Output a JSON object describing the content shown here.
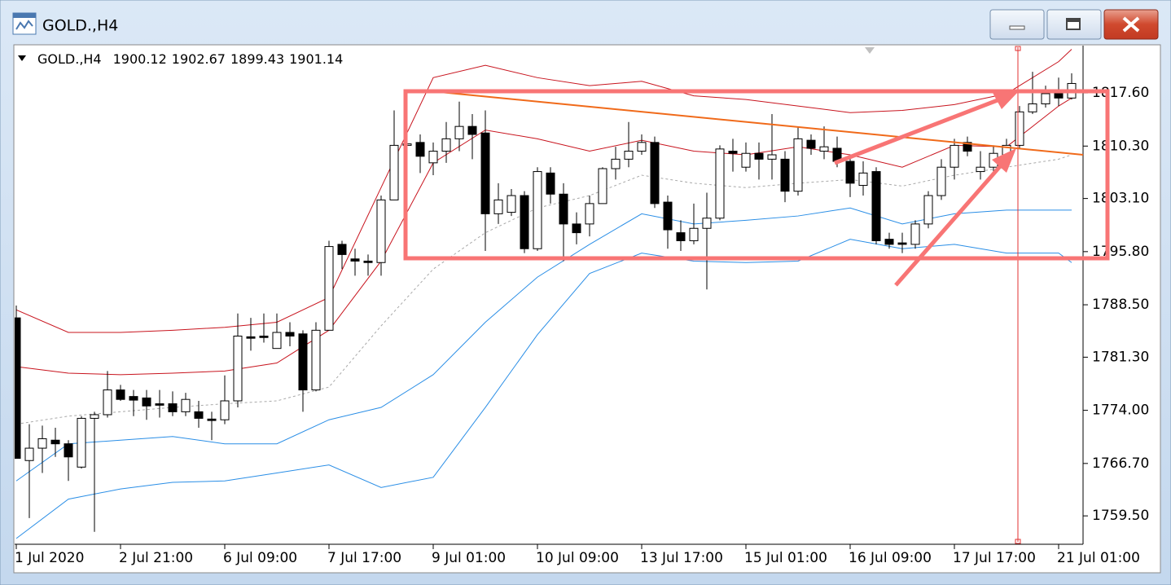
{
  "window": {
    "title": "GOLD.,H4"
  },
  "chart_data": {
    "type": "candlestick",
    "symbol": "GOLD.,H4",
    "header_values": [
      1900.12,
      1902.67,
      1899.43,
      1901.14
    ],
    "categories": [
      "1 Jul 2020",
      null,
      null,
      null,
      null,
      null,
      null,
      null,
      "2 Jul 21:00",
      null,
      null,
      null,
      null,
      null,
      null,
      null,
      "6 Jul 09:00",
      null,
      null,
      null,
      null,
      null,
      null,
      null,
      "7 Jul 17:00",
      null,
      null,
      null,
      null,
      null,
      null,
      null,
      "9 Jul 01:00",
      null,
      null,
      null,
      null,
      null,
      null,
      null,
      "10 Jul 09:00",
      null,
      null,
      null,
      null,
      null,
      null,
      null,
      "13 Jul 17:00",
      null,
      null,
      null,
      null,
      null,
      null,
      null,
      "15 Jul 01:00",
      null,
      null,
      null,
      null,
      null,
      null,
      null,
      "16 Jul 09:00",
      null,
      null,
      null,
      null,
      null,
      null,
      null,
      "17 Jul 17:00",
      null,
      null,
      null,
      null,
      null,
      null,
      null,
      "21 Jul 01:00",
      null
    ],
    "open": [
      1786.7,
      1767.1,
      1768.8,
      1769.9,
      1769.4,
      1766.2,
      1772.9,
      1773.4,
      1776.8,
      1775.9,
      1775.7,
      1774.9,
      1774.9,
      1773.8,
      1773.8,
      1772.8,
      1772.7,
      1775.3,
      1784.1,
      1784.2,
      1782.5,
      1784.7,
      1784.5,
      1776.8,
      1785.0,
      1796.8,
      1794.8,
      1794.5,
      1794.3,
      1802.9,
      1810.4,
      1810.8,
      1808.0,
      1809.6,
      1811.3,
      1813.0,
      1812.1,
      1801.0,
      1801.2,
      1803.5,
      1796.2,
      1806.6,
      1803.7,
      1799.6,
      1799.6,
      1802.4,
      1807.2,
      1808.5,
      1809.6,
      1810.8,
      1802.6,
      1798.4,
      1797.3,
      1799.0,
      1800.4,
      1809.6,
      1807.4,
      1809.3,
      1808.5,
      1808.5,
      1804.1,
      1811.1,
      1809.6,
      1810.0,
      1808.2,
      1804.9,
      1806.8,
      1797.5,
      1797.0,
      1796.8,
      1799.6,
      1803.5,
      1807.4,
      1810.8,
      1806.8,
      1807.4,
      1809.1,
      1810.4,
      1815.0,
      1816.1,
      1817.8,
      1816.9
    ],
    "high": [
      1788.4,
      1772.1,
      1771.9,
      1771.6,
      1769.9,
      1773.2,
      1773.8,
      1779.4,
      1777.5,
      1776.8,
      1776.8,
      1776.8,
      1776.6,
      1776.4,
      1775.3,
      1773.8,
      1778.8,
      1787.3,
      1786.7,
      1787.3,
      1787.3,
      1786.1,
      1785.0,
      1786.1,
      1797.3,
      1797.3,
      1796.2,
      1795.4,
      1803.5,
      1815.2,
      1816.9,
      1811.9,
      1810.8,
      1813.6,
      1816.4,
      1814.7,
      1815.2,
      1805.2,
      1804.4,
      1804.1,
      1807.4,
      1807.4,
      1805.2,
      1801.2,
      1803.5,
      1807.4,
      1810.2,
      1813.6,
      1811.9,
      1811.6,
      1803.5,
      1800.1,
      1802.4,
      1803.9,
      1810.4,
      1811.3,
      1810.8,
      1810.8,
      1814.7,
      1809.6,
      1813.0,
      1811.9,
      1813.0,
      1811.6,
      1809.1,
      1808.2,
      1807.4,
      1798.4,
      1798.4,
      1800.1,
      1804.1,
      1808.5,
      1811.3,
      1811.6,
      1809.6,
      1810.4,
      1811.3,
      1815.8,
      1820.5,
      1818.6,
      1819.7,
      1820.3
    ],
    "low": [
      1767.4,
      1759.2,
      1765.4,
      1767.6,
      1764.3,
      1766.0,
      1757.3,
      1773.0,
      1775.3,
      1773.2,
      1772.7,
      1773.0,
      1773.2,
      1773.2,
      1771.6,
      1769.9,
      1772.1,
      1774.4,
      1782.2,
      1783.3,
      1782.5,
      1782.8,
      1773.8,
      1776.6,
      1785.0,
      1793.4,
      1792.5,
      1792.5,
      1792.5,
      1802.9,
      1808.0,
      1806.6,
      1806.3,
      1808.0,
      1809.6,
      1808.5,
      1795.9,
      1799.6,
      1800.7,
      1795.6,
      1795.9,
      1802.4,
      1794.5,
      1796.8,
      1797.9,
      1802.4,
      1805.7,
      1807.4,
      1809.1,
      1801.8,
      1796.2,
      1795.9,
      1796.8,
      1790.6,
      1800.1,
      1806.8,
      1806.8,
      1805.7,
      1805.7,
      1802.6,
      1803.5,
      1809.1,
      1808.5,
      1807.4,
      1803.3,
      1803.5,
      1796.8,
      1796.2,
      1795.6,
      1796.2,
      1799.0,
      1802.9,
      1805.7,
      1808.9,
      1805.7,
      1806.6,
      1808.0,
      1810.0,
      1814.7,
      1815.6,
      1815.8,
      1816.7
    ],
    "close": [
      1767.4,
      1768.8,
      1770.1,
      1769.4,
      1767.6,
      1772.9,
      1773.4,
      1776.8,
      1775.5,
      1775.4,
      1774.6,
      1774.7,
      1773.8,
      1775.5,
      1772.9,
      1772.6,
      1775.3,
      1784.2,
      1783.9,
      1784.0,
      1784.7,
      1784.2,
      1776.8,
      1785.0,
      1796.5,
      1795.4,
      1794.5,
      1794.3,
      1802.9,
      1810.4,
      1810.6,
      1808.9,
      1809.6,
      1811.3,
      1813.0,
      1811.9,
      1801.0,
      1802.9,
      1803.5,
      1796.2,
      1806.8,
      1803.7,
      1799.6,
      1798.4,
      1802.4,
      1807.2,
      1808.5,
      1809.6,
      1810.8,
      1802.4,
      1798.8,
      1797.3,
      1799.0,
      1800.4,
      1809.9,
      1809.3,
      1809.3,
      1808.5,
      1809.1,
      1804.1,
      1811.3,
      1810.0,
      1810.2,
      1808.2,
      1805.2,
      1806.6,
      1797.3,
      1796.8,
      1796.8,
      1799.6,
      1803.5,
      1807.4,
      1810.4,
      1809.6,
      1807.4,
      1809.3,
      1810.4,
      1815.0,
      1816.1,
      1817.5,
      1816.9,
      1818.9
    ],
    "up_color": "#ffffff",
    "down_color": "#000000",
    "line_x": [
      0,
      4,
      8,
      12,
      16,
      20,
      24,
      28,
      32,
      36,
      40,
      44,
      48,
      52,
      56,
      60,
      64,
      68,
      72,
      76,
      80,
      81
    ],
    "lines": [
      {
        "color": "#c8141e",
        "values": [
          1787.8,
          1784.7,
          1784.7,
          1785.0,
          1785.4,
          1786.1,
          1789.5,
          1804.6,
          1819.7,
          1821.4,
          1819.7,
          1818.6,
          1819.2,
          1817.2,
          1816.7,
          1815.8,
          1814.9,
          1815.2,
          1816.0,
          1817.5,
          1821.9,
          1823.6
        ]
      },
      {
        "color": "#c8141e",
        "values": [
          1780.0,
          1779.1,
          1778.9,
          1779.1,
          1779.4,
          1780.5,
          1785.0,
          1794.5,
          1808.0,
          1812.5,
          1811.3,
          1809.6,
          1811.1,
          1809.6,
          1809.1,
          1810.2,
          1809.1,
          1807.4,
          1810.4,
          1810.2,
          1815.8,
          1816.9
        ]
      },
      {
        "color": "#a8a8a8",
        "dashed": true,
        "values": [
          1772.1,
          1773.2,
          1773.8,
          1774.4,
          1774.9,
          1775.3,
          1777.2,
          1785.6,
          1793.4,
          1798.4,
          1801.8,
          1803.5,
          1806.3,
          1805.2,
          1804.6,
          1805.2,
          1805.7,
          1804.8,
          1806.3,
          1807.4,
          1808.5,
          1809.1
        ]
      },
      {
        "color": "#2a8ee6",
        "values": [
          1764.3,
          1769.4,
          1769.9,
          1770.4,
          1769.4,
          1769.4,
          1772.7,
          1774.4,
          1778.9,
          1786.1,
          1792.3,
          1796.8,
          1801.0,
          1799.6,
          1800.1,
          1800.7,
          1801.8,
          1799.6,
          1801.0,
          1801.5,
          1801.5,
          1801.5
        ]
      },
      {
        "color": "#2a8ee6",
        "values": [
          1756.4,
          1761.8,
          1763.2,
          1764.1,
          1764.3,
          1765.4,
          1766.5,
          1763.4,
          1764.8,
          1774.4,
          1784.4,
          1792.8,
          1795.6,
          1794.5,
          1794.3,
          1794.5,
          1797.5,
          1796.2,
          1796.8,
          1795.6,
          1795.6,
          1794.3
        ]
      }
    ],
    "ylim": [
      1755.6,
      1824.1
    ],
    "yticks": [
      {
        "value": 1817.6,
        "label": "1817.60"
      },
      {
        "value": 1810.3,
        "label": "1810.30"
      },
      {
        "value": 1803.1,
        "label": "1803.10"
      },
      {
        "value": 1795.8,
        "label": "1795.80"
      },
      {
        "value": 1788.5,
        "label": "1788.50"
      },
      {
        "value": 1781.3,
        "label": "1781.30"
      },
      {
        "value": 1774,
        "label": "1774.00"
      },
      {
        "value": 1766.7,
        "label": "1766.70"
      },
      {
        "value": 1759.5,
        "label": "1759.50"
      }
    ],
    "grid": false
  }
}
